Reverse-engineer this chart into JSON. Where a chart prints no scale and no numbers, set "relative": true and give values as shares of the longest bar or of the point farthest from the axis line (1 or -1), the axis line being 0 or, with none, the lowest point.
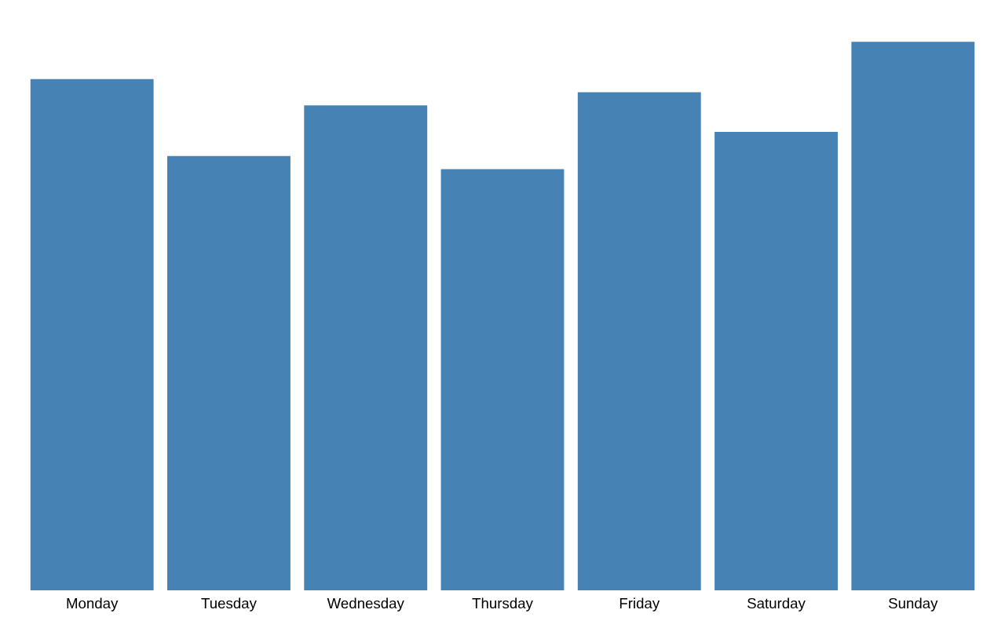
{
  "chart_data": {
    "type": "bar",
    "relative": true,
    "color": "#4682b4",
    "categories": [
      "Monday",
      "Tuesday",
      "Wednesday",
      "Thursday",
      "Friday",
      "Saturday",
      "Sunday"
    ],
    "values": [
      0.932,
      0.792,
      0.884,
      0.768,
      0.908,
      0.836,
      1.0
    ]
  }
}
